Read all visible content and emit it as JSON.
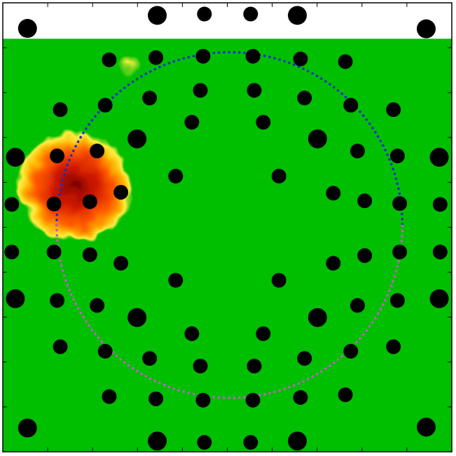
{
  "colors": {
    "background": "#00bf00",
    "unfilled_region": "#ffffff",
    "frame": "#000000",
    "electrode": "#000000",
    "circle_upper": "#1a2ecc",
    "circle_lower": "#c060c0",
    "hot_core": "#7a0000",
    "hot_mid": "#d01800",
    "hot_edge": "#ff5a00",
    "warm": "#ffb000",
    "warm_halo": "#ffee40"
  },
  "chart_data": {
    "type": "heatmap",
    "title": "",
    "xlabel": "",
    "ylabel": "",
    "xlim": [
      0,
      100
    ],
    "ylim": [
      0,
      100
    ],
    "grid": false,
    "legend": "none",
    "hotspots": [
      {
        "x": 16,
        "y": 59,
        "rx": 13,
        "ry": 12,
        "level": 1.0
      },
      {
        "x": 28,
        "y": 86,
        "rx": 3,
        "ry": 2,
        "level": 0.3
      }
    ],
    "boundary_circle": {
      "cx": 50.5,
      "cy": 50.5,
      "r": 38.5
    },
    "electrodes": [
      {
        "x": 5.5,
        "y": 94.3,
        "size": 2
      },
      {
        "x": 34.4,
        "y": 97.2,
        "size": 2
      },
      {
        "x": 44.9,
        "y": 97.5,
        "size": 1
      },
      {
        "x": 55.2,
        "y": 97.5,
        "size": 1
      },
      {
        "x": 65.6,
        "y": 97.2,
        "size": 2
      },
      {
        "x": 94.3,
        "y": 94.2,
        "size": 2
      },
      {
        "x": 23.7,
        "y": 87.3,
        "size": 1
      },
      {
        "x": 34.1,
        "y": 87.8,
        "size": 1
      },
      {
        "x": 44.6,
        "y": 88.1,
        "size": 1
      },
      {
        "x": 55.7,
        "y": 88.1,
        "size": 1
      },
      {
        "x": 66.3,
        "y": 87.5,
        "size": 1
      },
      {
        "x": 76.3,
        "y": 86.9,
        "size": 1
      },
      {
        "x": 12.8,
        "y": 76.2,
        "size": 1
      },
      {
        "x": 22.8,
        "y": 77.2,
        "size": 1
      },
      {
        "x": 32.7,
        "y": 78.8,
        "size": 1
      },
      {
        "x": 44.0,
        "y": 80.5,
        "size": 1
      },
      {
        "x": 56.0,
        "y": 80.5,
        "size": 1
      },
      {
        "x": 67.2,
        "y": 78.8,
        "size": 1
      },
      {
        "x": 77.5,
        "y": 77.2,
        "size": 1
      },
      {
        "x": 87.0,
        "y": 76.2,
        "size": 1
      },
      {
        "x": 42.1,
        "y": 73.4,
        "size": 1
      },
      {
        "x": 58.0,
        "y": 73.4,
        "size": 1
      },
      {
        "x": 2.8,
        "y": 65.6,
        "size": 2
      },
      {
        "x": 12.1,
        "y": 65.9,
        "size": 1
      },
      {
        "x": 21.0,
        "y": 67.0,
        "size": 1
      },
      {
        "x": 29.9,
        "y": 69.7,
        "size": 2
      },
      {
        "x": 70.1,
        "y": 69.7,
        "size": 2
      },
      {
        "x": 79.0,
        "y": 67.0,
        "size": 1
      },
      {
        "x": 87.9,
        "y": 65.9,
        "size": 1
      },
      {
        "x": 97.2,
        "y": 65.6,
        "size": 2
      },
      {
        "x": 38.5,
        "y": 61.4,
        "size": 1
      },
      {
        "x": 61.5,
        "y": 61.4,
        "size": 1
      },
      {
        "x": 73.6,
        "y": 57.6,
        "size": 1
      },
      {
        "x": 80.6,
        "y": 55.9,
        "size": 1
      },
      {
        "x": 2.0,
        "y": 55.1,
        "size": 1
      },
      {
        "x": 11.4,
        "y": 55.2,
        "size": 1
      },
      {
        "x": 19.4,
        "y": 55.7,
        "size": 1
      },
      {
        "x": 26.3,
        "y": 57.8,
        "size": 1
      },
      {
        "x": 88.4,
        "y": 55.3,
        "size": 1
      },
      {
        "x": 97.4,
        "y": 55.1,
        "size": 1
      },
      {
        "x": 2.0,
        "y": 44.5,
        "size": 1
      },
      {
        "x": 11.4,
        "y": 44.5,
        "size": 1
      },
      {
        "x": 19.4,
        "y": 43.9,
        "size": 1
      },
      {
        "x": 26.3,
        "y": 42.0,
        "size": 1
      },
      {
        "x": 73.6,
        "y": 42.0,
        "size": 1
      },
      {
        "x": 80.6,
        "y": 43.7,
        "size": 1
      },
      {
        "x": 88.4,
        "y": 44.5,
        "size": 1
      },
      {
        "x": 97.4,
        "y": 44.5,
        "size": 1
      },
      {
        "x": 38.5,
        "y": 38.2,
        "size": 1
      },
      {
        "x": 61.5,
        "y": 38.2,
        "size": 1
      },
      {
        "x": 2.8,
        "y": 34.1,
        "size": 2
      },
      {
        "x": 12.1,
        "y": 33.7,
        "size": 1
      },
      {
        "x": 21.0,
        "y": 32.6,
        "size": 1
      },
      {
        "x": 29.9,
        "y": 29.9,
        "size": 2
      },
      {
        "x": 70.1,
        "y": 29.9,
        "size": 2
      },
      {
        "x": 79.0,
        "y": 32.6,
        "size": 1
      },
      {
        "x": 87.9,
        "y": 33.7,
        "size": 1
      },
      {
        "x": 97.2,
        "y": 34.1,
        "size": 2
      },
      {
        "x": 42.1,
        "y": 26.3,
        "size": 1
      },
      {
        "x": 58.0,
        "y": 26.3,
        "size": 1
      },
      {
        "x": 12.8,
        "y": 23.4,
        "size": 1
      },
      {
        "x": 22.8,
        "y": 22.4,
        "size": 1
      },
      {
        "x": 32.7,
        "y": 20.8,
        "size": 1
      },
      {
        "x": 44.0,
        "y": 19.1,
        "size": 1
      },
      {
        "x": 56.0,
        "y": 19.1,
        "size": 1
      },
      {
        "x": 67.2,
        "y": 20.8,
        "size": 1
      },
      {
        "x": 77.5,
        "y": 22.4,
        "size": 1
      },
      {
        "x": 87.0,
        "y": 23.4,
        "size": 1
      },
      {
        "x": 23.7,
        "y": 12.3,
        "size": 1
      },
      {
        "x": 34.1,
        "y": 11.8,
        "size": 1
      },
      {
        "x": 44.6,
        "y": 11.5,
        "size": 1
      },
      {
        "x": 55.7,
        "y": 11.5,
        "size": 1
      },
      {
        "x": 66.3,
        "y": 12.1,
        "size": 1
      },
      {
        "x": 76.3,
        "y": 12.7,
        "size": 1
      },
      {
        "x": 5.5,
        "y": 5.3,
        "size": 2
      },
      {
        "x": 34.4,
        "y": 2.4,
        "size": 2
      },
      {
        "x": 44.9,
        "y": 2.1,
        "size": 1
      },
      {
        "x": 55.2,
        "y": 2.1,
        "size": 1
      },
      {
        "x": 65.6,
        "y": 2.4,
        "size": 2
      },
      {
        "x": 94.3,
        "y": 5.5,
        "size": 2
      }
    ],
    "unfilled_band": {
      "y_from": 92,
      "y_to": 100
    }
  }
}
